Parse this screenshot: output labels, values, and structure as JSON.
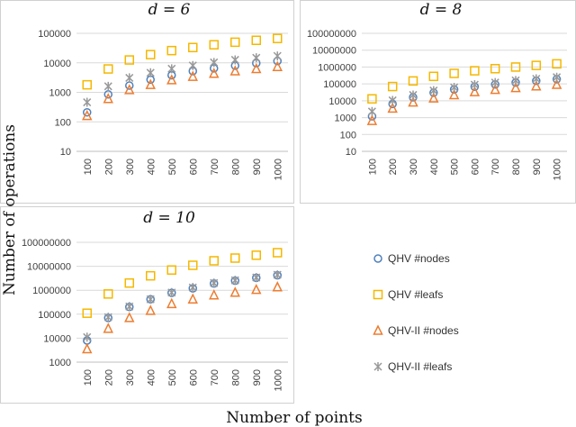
{
  "figure": {
    "ylabel": "Number of operations",
    "xlabel": "Number of points"
  },
  "colors": {
    "qhv_nodes": "#4f81bd",
    "qhv_leafs": "#f5b800",
    "qhvii_nodes": "#ed7d31",
    "qhvii_leafs": "#999999"
  },
  "legend": [
    {
      "label": "QHV #nodes",
      "marker": "circle",
      "color": "#4f81bd"
    },
    {
      "label": "QHV #leafs",
      "marker": "square",
      "color": "#f5b800"
    },
    {
      "label": "QHV-II #nodes",
      "marker": "triangle",
      "color": "#ed7d31"
    },
    {
      "label": "QHV-II #leafs",
      "marker": "star",
      "color": "#999999"
    }
  ],
  "chart_data": [
    {
      "type": "scatter",
      "title": "d = 6",
      "yscale": "log",
      "categories": [
        "100",
        "200",
        "300",
        "400",
        "500",
        "600",
        "700",
        "800",
        "900",
        "1000"
      ],
      "ylim": [
        10,
        100000
      ],
      "yticks": [
        "10",
        "100",
        "1000",
        "10000",
        "100000"
      ],
      "series": [
        {
          "name": "QHV #nodes",
          "values": [
            210,
            850,
            1700,
            2700,
            3800,
            5200,
            6500,
            8000,
            9700,
            11500
          ]
        },
        {
          "name": "QHV #leafs",
          "values": [
            1800,
            6200,
            12500,
            19000,
            26000,
            33000,
            41000,
            50000,
            58000,
            67000
          ]
        },
        {
          "name": "QHV-II #nodes",
          "values": [
            160,
            600,
            1200,
            1800,
            2600,
            3400,
            4300,
            5200,
            6200,
            7300
          ]
        },
        {
          "name": "QHV-II #leafs",
          "values": [
            460,
            1600,
            3100,
            4600,
            6300,
            8100,
            10300,
            12600,
            14800,
            17100
          ]
        }
      ]
    },
    {
      "type": "scatter",
      "title": "d = 8",
      "yscale": "log",
      "categories": [
        "100",
        "200",
        "300",
        "400",
        "500",
        "600",
        "700",
        "800",
        "900",
        "1000"
      ],
      "ylim": [
        10,
        100000000
      ],
      "yticks": [
        "10",
        "100",
        "1000",
        "10000",
        "100000",
        "1000000",
        "10000000",
        "100000000"
      ],
      "series": [
        {
          "name": "QHV #nodes",
          "values": [
            1200,
            6500,
            16000,
            30000,
            47000,
            68000,
            93000,
            120000,
            152000,
            190000
          ]
        },
        {
          "name": "QHV #leafs",
          "values": [
            13000,
            70000,
            150000,
            280000,
            420000,
            600000,
            800000,
            1000000,
            1250000,
            1550000
          ]
        },
        {
          "name": "QHV-II #nodes",
          "values": [
            650,
            3500,
            8000,
            14000,
            22000,
            33000,
            45000,
            58000,
            73000,
            90000
          ]
        },
        {
          "name": "QHV-II #leafs",
          "values": [
            2300,
            10500,
            22000,
            40000,
            62000,
            90000,
            120000,
            160000,
            200000,
            250000
          ]
        }
      ]
    },
    {
      "type": "scatter",
      "title": "d = 10",
      "yscale": "log",
      "categories": [
        "100",
        "200",
        "300",
        "400",
        "500",
        "600",
        "700",
        "800",
        "900",
        "1000"
      ],
      "ylim": [
        1000,
        100000000
      ],
      "yticks": [
        "1000",
        "10000",
        "100000",
        "1000000",
        "10000000",
        "100000000"
      ],
      "series": [
        {
          "name": "QHV #nodes",
          "values": [
            8000,
            70000,
            200000,
            420000,
            780000,
            1200000,
            1900000,
            2500000,
            3300000,
            4200000
          ]
        },
        {
          "name": "QHV #leafs",
          "values": [
            110000,
            700000,
            2000000,
            4000000,
            7000000,
            11000000,
            17000000,
            22000000,
            29000000,
            37000000
          ]
        },
        {
          "name": "QHV-II #nodes",
          "values": [
            3500,
            25000,
            70000,
            140000,
            270000,
            420000,
            620000,
            800000,
            1050000,
            1350000
          ]
        },
        {
          "name": "QHV-II #leafs",
          "values": [
            11000,
            75000,
            210000,
            420000,
            800000,
            1300000,
            2000000,
            2600000,
            3400000,
            4400000
          ]
        }
      ]
    }
  ]
}
